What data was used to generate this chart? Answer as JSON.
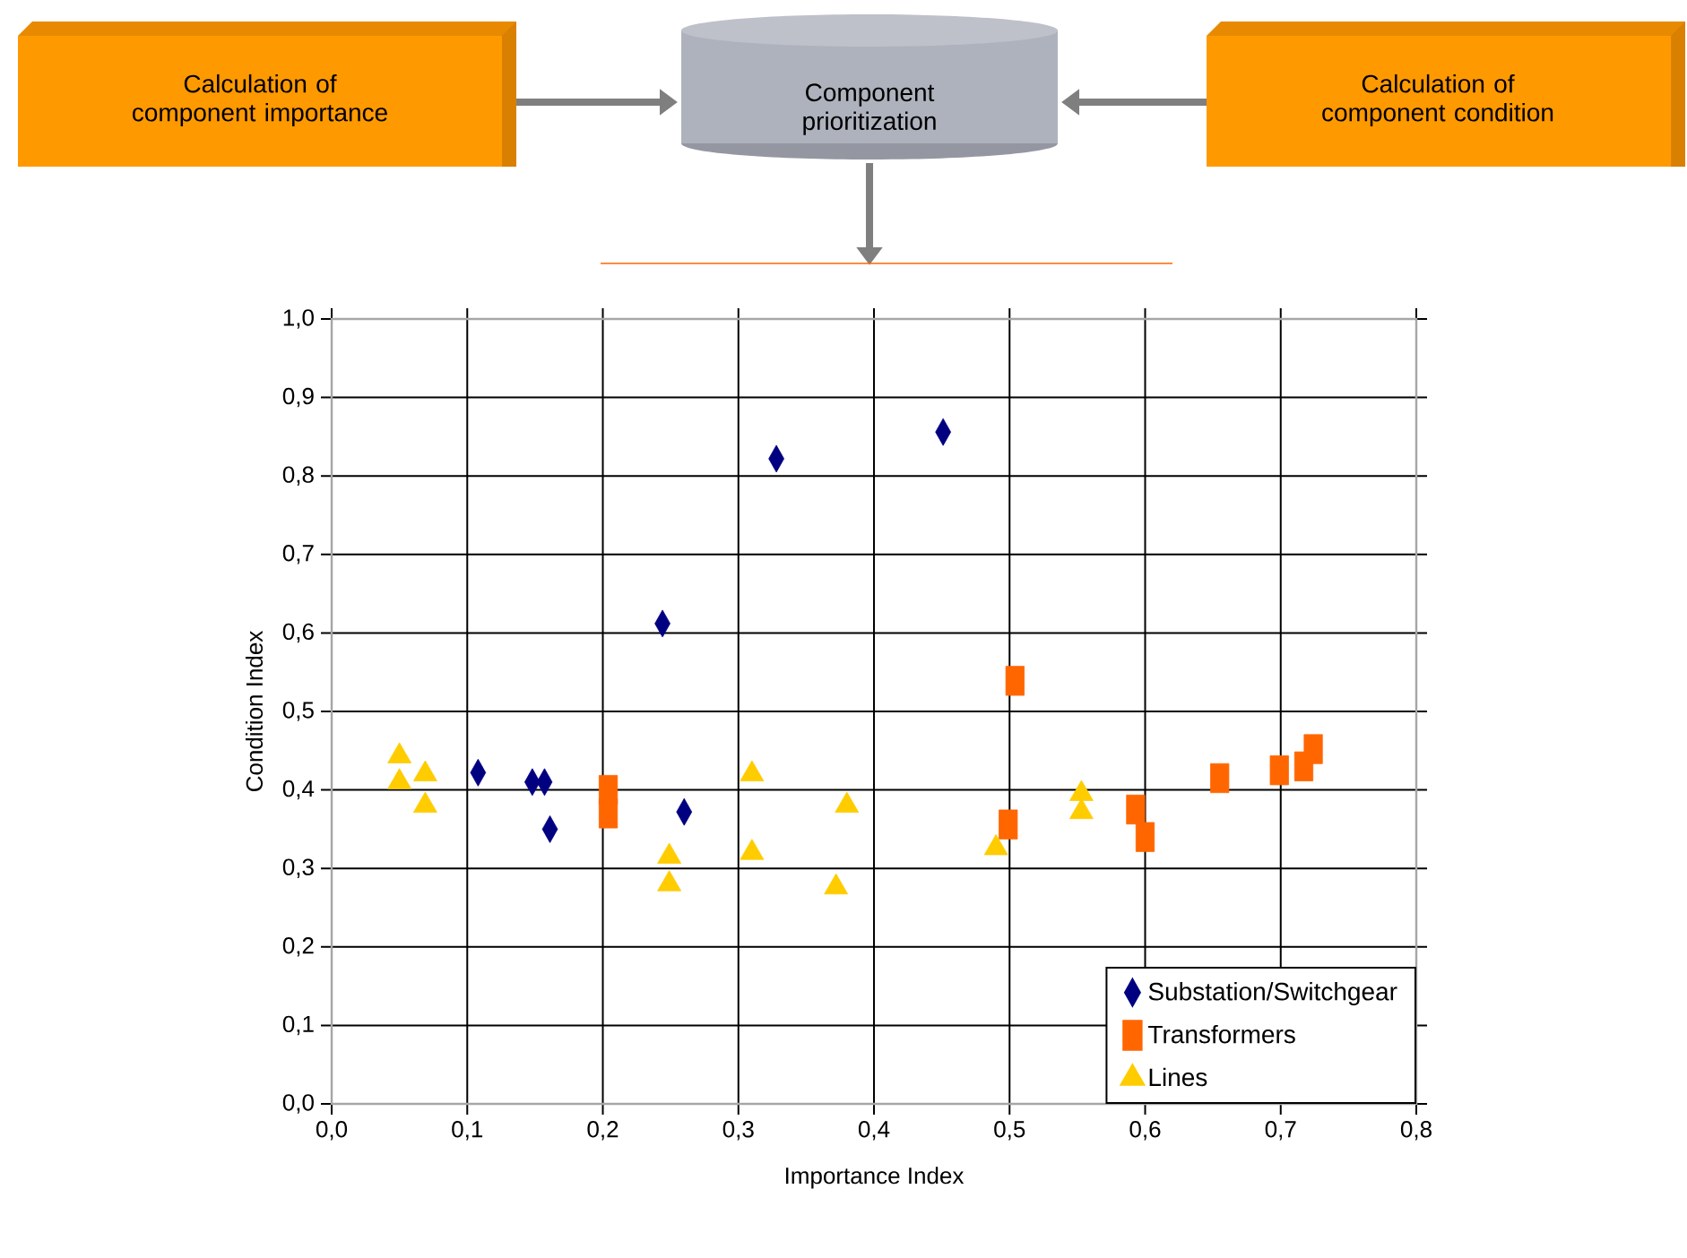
{
  "chart_data": {
    "type": "scatter",
    "xlabel": "Importance Index",
    "ylabel": "Condition Index",
    "annotations": [
      "Calculation of component importance",
      "Component prioritization",
      "Calculation of component condition"
    ],
    "xlim": [
      0,
      0.8
    ],
    "ylim": [
      0,
      1.0
    ],
    "xticks": [
      {
        "value": 0,
        "label": "0,0"
      },
      {
        "value": 0.1,
        "label": "0,1"
      },
      {
        "value": 0.2,
        "label": "0,2"
      },
      {
        "value": 0.3,
        "label": "0,3"
      },
      {
        "value": 0.4,
        "label": "0,4"
      },
      {
        "value": 0.5,
        "label": "0,5"
      },
      {
        "value": 0.6,
        "label": "0,6"
      },
      {
        "value": 0.7,
        "label": "0,7"
      },
      {
        "value": 0.8,
        "label": "0,8"
      }
    ],
    "yticks": [
      {
        "value": 0,
        "label": "0,0"
      },
      {
        "value": 0.1,
        "label": "0,1"
      },
      {
        "value": 0.2,
        "label": "0,2"
      },
      {
        "value": 0.3,
        "label": "0,3"
      },
      {
        "value": 0.4,
        "label": "0,4"
      },
      {
        "value": 0.5,
        "label": "0,5"
      },
      {
        "value": 0.6,
        "label": "0,6"
      },
      {
        "value": 0.7,
        "label": "0,7"
      },
      {
        "value": 0.8,
        "label": "0,8"
      },
      {
        "value": 0.9,
        "label": "0,9"
      },
      {
        "value": 1.0,
        "label": "1,0"
      }
    ],
    "grid": true,
    "legend": "bottom right",
    "series": [
      {
        "name": "Substation/Switchgear",
        "color": "#000080",
        "marker": "diamond",
        "x": [
          0.108,
          0.148,
          0.157,
          0.161,
          0.244,
          0.26,
          0.328,
          0.451
        ],
        "values": [
          0.422,
          0.41,
          0.41,
          0.35,
          0.612,
          0.372,
          0.822,
          0.856
        ]
      },
      {
        "name": "Transformers",
        "color": "#ff6600",
        "marker": "square",
        "x": [
          0.204,
          0.204,
          0.504,
          0.499,
          0.593,
          0.6,
          0.655,
          0.699,
          0.717,
          0.724
        ],
        "values": [
          0.4,
          0.37,
          0.539,
          0.356,
          0.375,
          0.34,
          0.415,
          0.425,
          0.43,
          0.452
        ]
      },
      {
        "name": "Lines",
        "color": "#ffcc00",
        "marker": "triangle",
        "x": [
          0.05,
          0.05,
          0.069,
          0.069,
          0.249,
          0.249,
          0.31,
          0.31,
          0.372,
          0.38,
          0.49,
          0.553,
          0.553
        ],
        "values": [
          0.443,
          0.41,
          0.42,
          0.38,
          0.315,
          0.28,
          0.42,
          0.32,
          0.276,
          0.38,
          0.326,
          0.395,
          0.372
        ]
      }
    ]
  }
}
